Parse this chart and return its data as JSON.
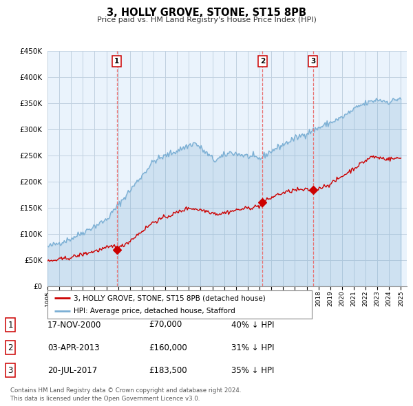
{
  "title": "3, HOLLY GROVE, STONE, ST15 8PB",
  "subtitle": "Price paid vs. HM Land Registry's House Price Index (HPI)",
  "ylim": [
    0,
    450000
  ],
  "yticks": [
    0,
    50000,
    100000,
    150000,
    200000,
    250000,
    300000,
    350000,
    400000,
    450000
  ],
  "legend_house": "3, HOLLY GROVE, STONE, ST15 8PB (detached house)",
  "legend_hpi": "HPI: Average price, detached house, Stafford",
  "transactions": [
    {
      "num": 1,
      "date": "17-NOV-2000",
      "price": 70000,
      "pct": "40%",
      "x_year": 2000.88
    },
    {
      "num": 2,
      "date": "03-APR-2013",
      "price": 160000,
      "pct": "31%",
      "x_year": 2013.25
    },
    {
      "num": 3,
      "date": "20-JUL-2017",
      "price": 183500,
      "pct": "35%",
      "x_year": 2017.54
    }
  ],
  "table_rows": [
    [
      "1",
      "17-NOV-2000",
      "£70,000",
      "40% ↓ HPI"
    ],
    [
      "2",
      "03-APR-2013",
      "£160,000",
      "31% ↓ HPI"
    ],
    [
      "3",
      "20-JUL-2017",
      "£183,500",
      "35% ↓ HPI"
    ]
  ],
  "footnote": "Contains HM Land Registry data © Crown copyright and database right 2024.\nThis data is licensed under the Open Government Licence v3.0.",
  "house_color": "#cc0000",
  "hpi_color": "#7bafd4",
  "hpi_fill_color": "#ddeeff",
  "vline_color": "#e87070",
  "background_color": "#ffffff",
  "chart_bg_color": "#eaf3fc",
  "grid_color": "#c0d0e0",
  "label_border_color": "#cc0000",
  "xlim_start": 1995.0,
  "xlim_end": 2025.5
}
